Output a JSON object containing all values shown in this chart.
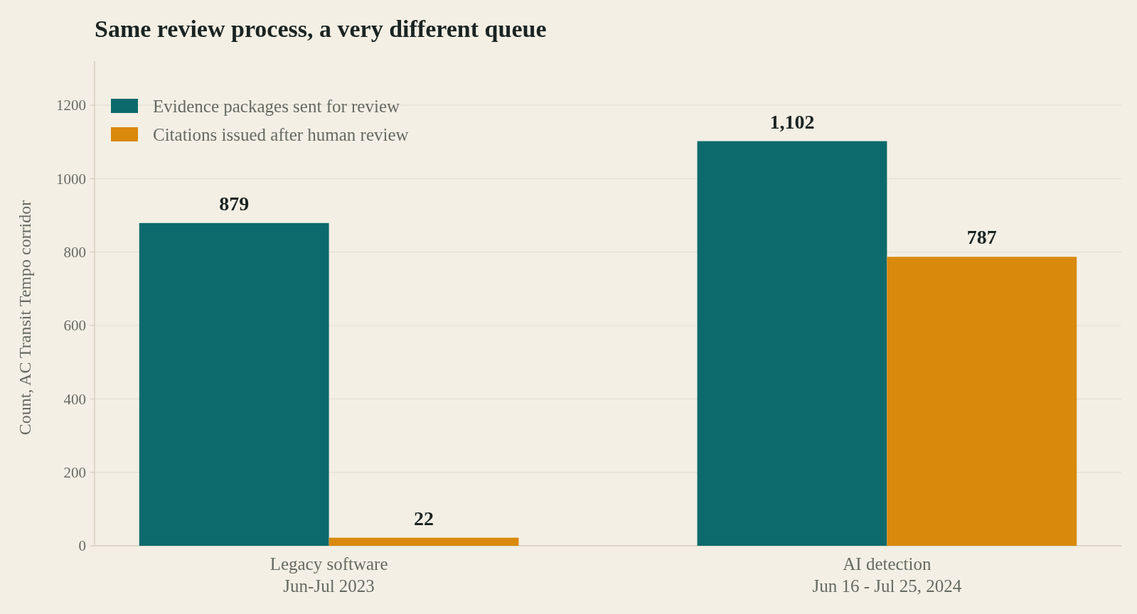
{
  "chart_data": {
    "type": "bar",
    "title": "Same review process, a very different queue",
    "ylabel": "Count, AC Transit Tempo corridor",
    "categories": [
      "Legacy software\nJun-Jul 2023",
      "AI detection\nJun 16 - Jul 25, 2024"
    ],
    "series": [
      {
        "name": "Evidence packages sent for review",
        "color": "#0d6a6c",
        "values": [
          879,
          1102
        ],
        "value_labels": [
          "879",
          "1,102"
        ]
      },
      {
        "name": "Citations issued after human review",
        "color": "#d9890c",
        "values": [
          22,
          787
        ],
        "value_labels": [
          "22",
          "787"
        ]
      }
    ],
    "ylim": [
      0,
      1320
    ],
    "yticks": [
      0,
      200,
      400,
      600,
      800,
      1000,
      1200
    ],
    "grid": "y",
    "legend": "top left"
  }
}
